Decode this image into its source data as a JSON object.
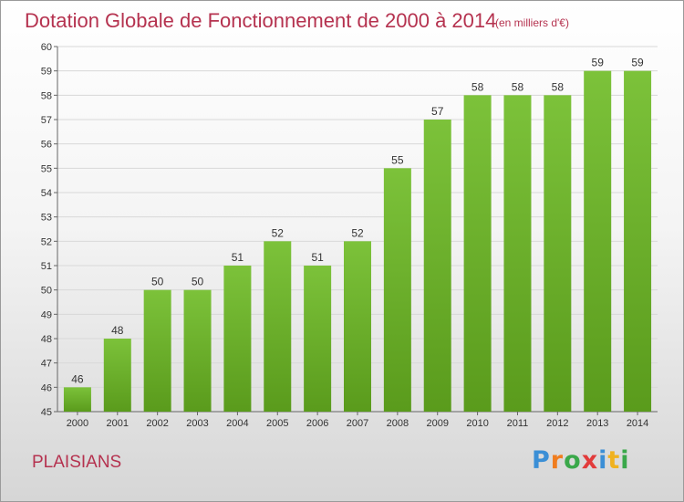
{
  "header": {
    "title": "Dotation Globale de Fonctionnement de 2000 à 2014",
    "subtitle": "(en milliers d'€)"
  },
  "footer": {
    "commune": "PLAISIANS",
    "logo_letters": [
      "P",
      "r",
      "o",
      "x",
      "i",
      "t",
      "i"
    ],
    "logo_colors": [
      "#3b8fd6",
      "#f07d1f",
      "#3aa84a",
      "#e23b3b",
      "#3b8fd6",
      "#f0b21f",
      "#3aa84a"
    ]
  },
  "chart_data": {
    "type": "bar",
    "title": "Dotation Globale de Fonctionnement de 2000 à 2014",
    "subtitle": "(en milliers d'€)",
    "xlabel": "",
    "ylabel": "",
    "categories": [
      "2000",
      "2001",
      "2002",
      "2003",
      "2004",
      "2005",
      "2006",
      "2007",
      "2008",
      "2009",
      "2010",
      "2011",
      "2012",
      "2013",
      "2014"
    ],
    "values": [
      46,
      48,
      50,
      50,
      51,
      52,
      51,
      52,
      55,
      57,
      58,
      58,
      58,
      59,
      59
    ],
    "ylim": [
      45,
      60
    ],
    "yticks": [
      "45",
      "46",
      "47",
      "48",
      "49",
      "50",
      "51",
      "52",
      "53",
      "54",
      "55",
      "56",
      "57",
      "58",
      "59",
      "60"
    ],
    "grid": true,
    "bar_color": "#7cc23a",
    "bar_color_dark": "#5a9b1c",
    "legend": "none"
  }
}
